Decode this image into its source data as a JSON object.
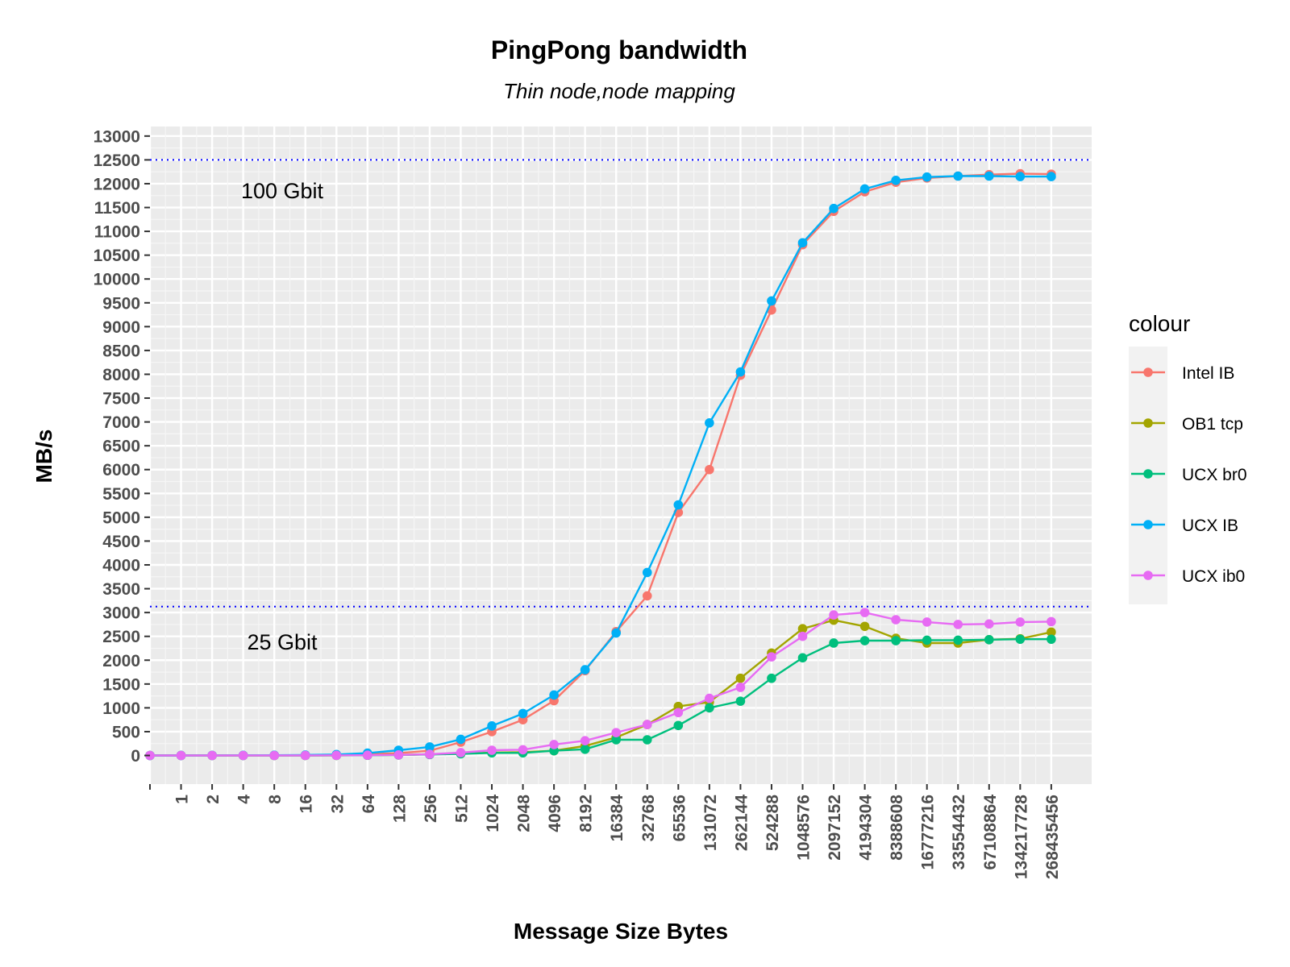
{
  "chart_data": {
    "type": "line",
    "title": "PingPong bandwidth",
    "subtitle": "Thin node,node mapping",
    "xlabel": "Message Size Bytes",
    "ylabel": "MB/s",
    "legend_title": "colour",
    "legend_position": "right",
    "grid": true,
    "ylim": [
      -600,
      13200
    ],
    "y_ticks": [
      "0",
      "500",
      "1000",
      "1500",
      "2000",
      "2500",
      "3000",
      "3500",
      "4000",
      "4500",
      "5000",
      "5500",
      "6000",
      "6500",
      "7000",
      "7500",
      "8000",
      "8500",
      "9000",
      "9500",
      "10000",
      "10500",
      "11000",
      "11500",
      "12000",
      "12500",
      "13000"
    ],
    "x": [
      "0",
      "1",
      "2",
      "4",
      "8",
      "16",
      "32",
      "64",
      "128",
      "256",
      "512",
      "1024",
      "2048",
      "4096",
      "8192",
      "16384",
      "32768",
      "65536",
      "131072",
      "262144",
      "524288",
      "1048576",
      "2097152",
      "4194304",
      "8388608",
      "16777216",
      "33554432",
      "67108864",
      "134217728",
      "268435456"
    ],
    "x_tick_labels": [
      "",
      "1",
      "2",
      "4",
      "8",
      "16",
      "32",
      "64",
      "128",
      "256",
      "512",
      "1024",
      "2048",
      "4096",
      "8192",
      "16384",
      "32768",
      "65536",
      "131072",
      "262144",
      "524288",
      "1048576",
      "2097152",
      "4194304",
      "8388608",
      "16777216",
      "33554432",
      "67108864",
      "134217728",
      "268435456"
    ],
    "reference_lines": [
      {
        "y": 12500,
        "label": "100 Gbit",
        "color": "#0000ff"
      },
      {
        "y": 3125,
        "label": "25 Gbit",
        "color": "#0000ff"
      }
    ],
    "series": [
      {
        "name": "Intel IB",
        "color": "#F8766D",
        "values": [
          0,
          1,
          1,
          2,
          3,
          6,
          12,
          25,
          50,
          100,
          280,
          500,
          750,
          1150,
          1780,
          2600,
          3350,
          5100,
          6000,
          7980,
          9350,
          10720,
          11420,
          11830,
          12030,
          12120,
          12160,
          12190,
          12210,
          12200
        ]
      },
      {
        "name": "OB1 tcp",
        "color": "#A3A500",
        "values": [
          0,
          0,
          0,
          0,
          0,
          1,
          2,
          5,
          12,
          25,
          40,
          60,
          70,
          100,
          200,
          380,
          650,
          1030,
          1120,
          1620,
          2150,
          2660,
          2840,
          2710,
          2460,
          2360,
          2360,
          2430,
          2450,
          2590
        ]
      },
      {
        "name": "UCX br0",
        "color": "#00BF7D",
        "values": [
          0,
          0,
          0,
          0,
          0,
          1,
          2,
          4,
          10,
          20,
          35,
          55,
          55,
          100,
          130,
          330,
          330,
          630,
          1000,
          1140,
          1620,
          2050,
          2360,
          2410,
          2410,
          2420,
          2420,
          2430,
          2440,
          2440
        ]
      },
      {
        "name": "UCX IB",
        "color": "#00B0F6",
        "values": [
          0,
          1,
          2,
          3,
          5,
          10,
          20,
          50,
          110,
          180,
          340,
          620,
          880,
          1270,
          1800,
          2570,
          3840,
          5260,
          6980,
          8050,
          9540,
          10760,
          11480,
          11890,
          12070,
          12140,
          12160,
          12160,
          12150,
          12150
        ]
      },
      {
        "name": "UCX ib0",
        "color": "#E76BF3",
        "values": [
          0,
          0,
          0,
          0,
          0,
          1,
          3,
          6,
          12,
          25,
          60,
          110,
          120,
          230,
          310,
          480,
          650,
          900,
          1200,
          1430,
          2070,
          2500,
          2950,
          3000,
          2850,
          2800,
          2750,
          2760,
          2800,
          2810
        ]
      }
    ]
  }
}
